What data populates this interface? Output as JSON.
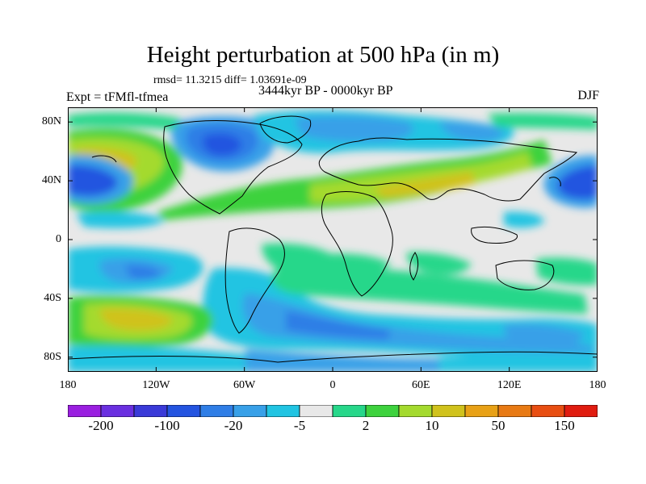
{
  "title": "Height perturbation at 500 hPa (in m)",
  "stats": "rmsd= 11.3215 diff= 1.03691e-09",
  "experiment": "Expt = tFMfl-tfmea",
  "period": "3444kyr BP - 0000kyr BP",
  "season": "DJF",
  "lat_labels": [
    {
      "text": "80N",
      "value": 80
    },
    {
      "text": "40N",
      "value": 40
    },
    {
      "text": "0",
      "value": 0
    },
    {
      "text": "40S",
      "value": -40
    },
    {
      "text": "80S",
      "value": -80
    }
  ],
  "lon_labels": [
    {
      "text": "180",
      "value": -180
    },
    {
      "text": "120W",
      "value": -120
    },
    {
      "text": "60W",
      "value": -60
    },
    {
      "text": "0",
      "value": 0
    },
    {
      "text": "60E",
      "value": 60
    },
    {
      "text": "120E",
      "value": 120
    },
    {
      "text": "180",
      "value": 180
    }
  ],
  "colorbar": {
    "colors": [
      "#9a1fe0",
      "#6a2fe0",
      "#3a3ad8",
      "#2454e0",
      "#2f7ee6",
      "#38a0e8",
      "#21c4e2",
      "#e8e8e8",
      "#27d78a",
      "#3ed23e",
      "#a4da2e",
      "#d0c21c",
      "#e8a116",
      "#e87a14",
      "#e84e12",
      "#e01c10"
    ],
    "labels": [
      {
        "text": "-200",
        "boundary": 1
      },
      {
        "text": "-100",
        "boundary": 3
      },
      {
        "text": "-20",
        "boundary": 5
      },
      {
        "text": "-5",
        "boundary": 7
      },
      {
        "text": "2",
        "boundary": 9
      },
      {
        "text": "10",
        "boundary": 11
      },
      {
        "text": "50",
        "boundary": 13
      },
      {
        "text": "150",
        "boundary": 15
      }
    ]
  }
}
